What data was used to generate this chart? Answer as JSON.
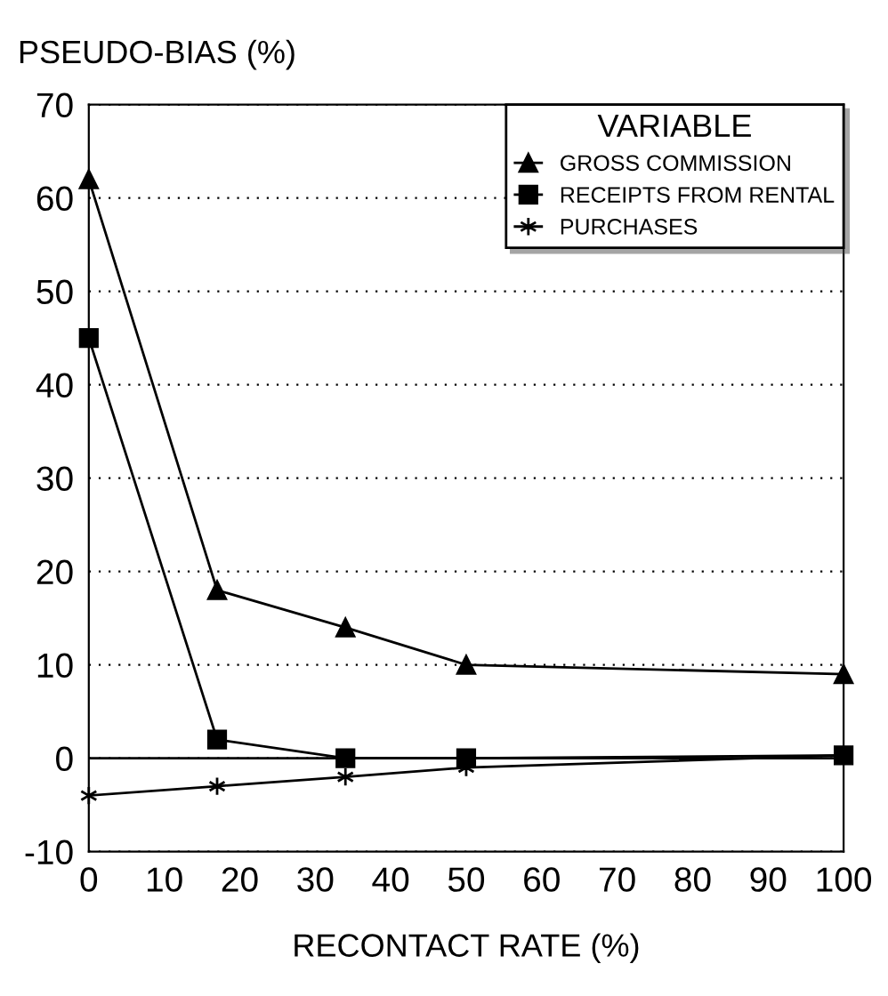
{
  "chart_data": {
    "type": "line",
    "ylabel": "PSEUDO-BIAS (%)",
    "xlabel": "RECONTACT RATE (%)",
    "legend_title": "VARIABLE",
    "x": [
      0,
      17,
      34,
      50,
      100
    ],
    "series": [
      {
        "name": "GROSS COMMISSION",
        "color": "#000000",
        "marker": "triangle",
        "values": [
          62,
          18,
          14,
          10,
          9
        ]
      },
      {
        "name": "RECEIPTS FROM RENTAL",
        "color": "#000000",
        "marker": "square",
        "values": [
          45,
          2,
          0,
          0,
          0.3
        ]
      },
      {
        "name": "PURCHASES",
        "color": "#000000",
        "marker": "cross",
        "values": [
          -4,
          -3,
          -2,
          -1,
          0.3
        ]
      }
    ],
    "xlim": [
      0,
      100
    ],
    "xticks": [
      0,
      10,
      20,
      30,
      40,
      50,
      60,
      70,
      80,
      90,
      100
    ],
    "ylim": [
      -10,
      70
    ],
    "yticks": [
      -10,
      0,
      10,
      20,
      30,
      40,
      50,
      60,
      70
    ],
    "ref_lines": [
      {
        "axis": "y",
        "value": 0,
        "color": "#000000",
        "line_style": "solid"
      }
    ],
    "grid": "y",
    "legend": "top right",
    "line_style": "solid"
  }
}
